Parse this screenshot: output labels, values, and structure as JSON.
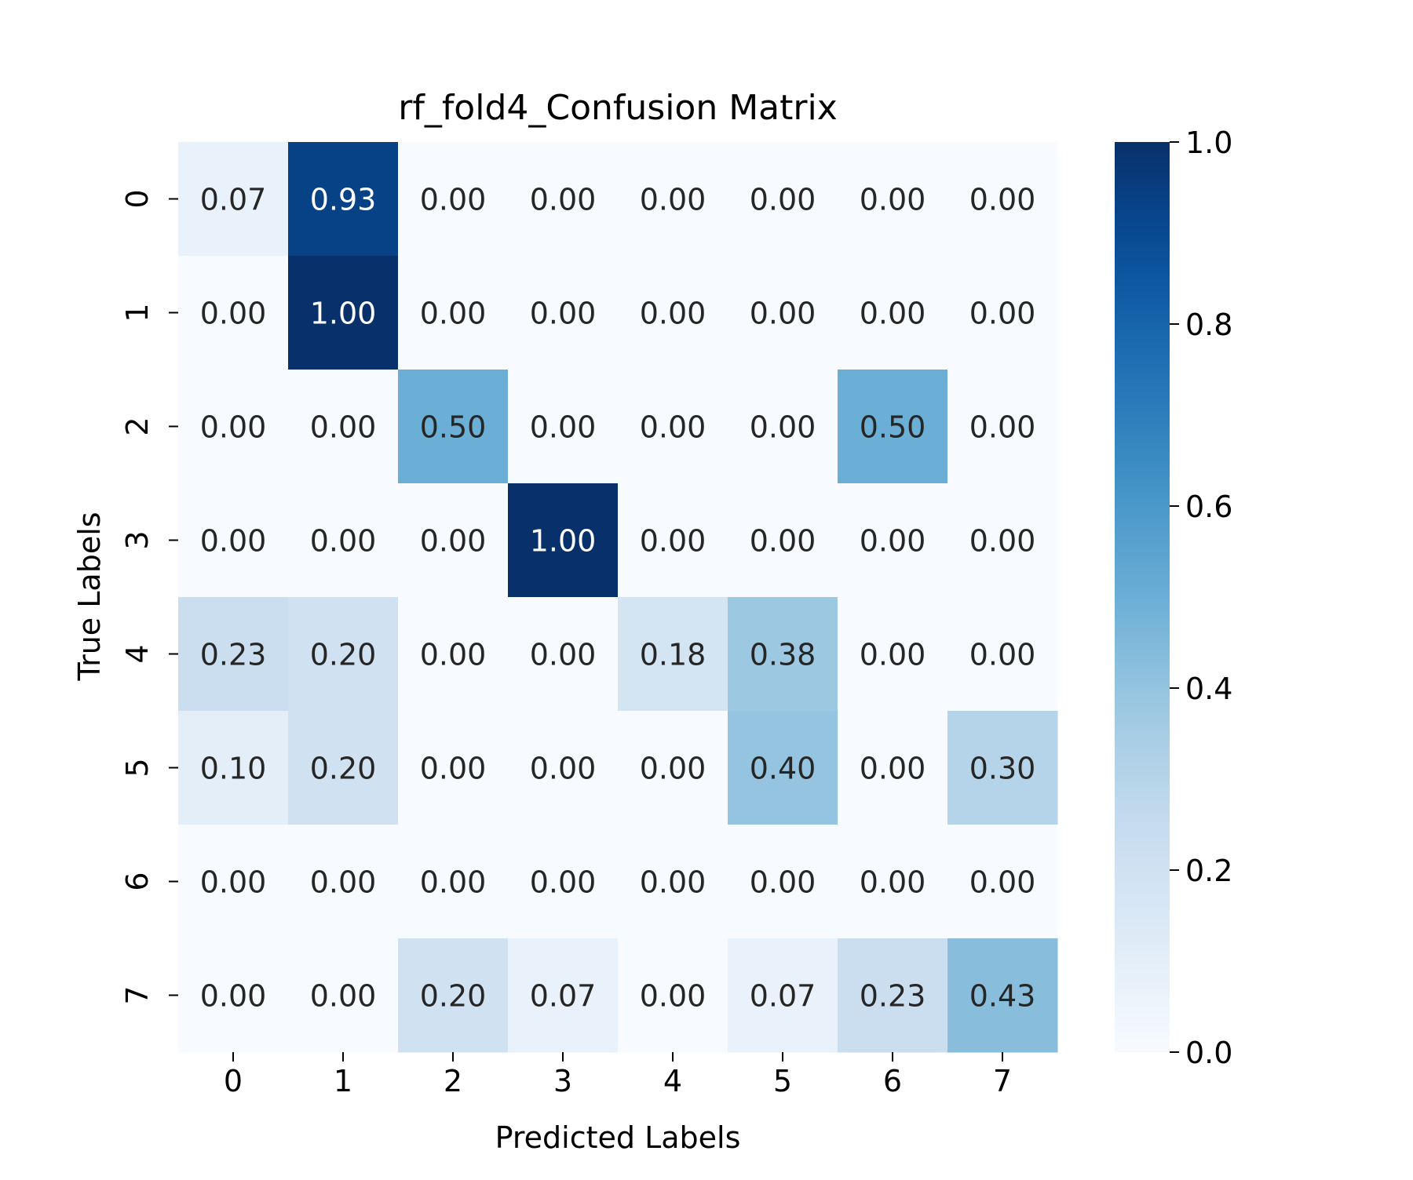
{
  "chart_data": {
    "type": "heatmap",
    "title": "rf_fold4_Confusion Matrix",
    "xlabel": "Predicted Labels",
    "ylabel": "True Labels",
    "x_categories": [
      "0",
      "1",
      "2",
      "3",
      "4",
      "5",
      "6",
      "7"
    ],
    "y_categories": [
      "0",
      "1",
      "2",
      "3",
      "4",
      "5",
      "6",
      "7"
    ],
    "values": [
      [
        0.07,
        0.93,
        0.0,
        0.0,
        0.0,
        0.0,
        0.0,
        0.0
      ],
      [
        0.0,
        1.0,
        0.0,
        0.0,
        0.0,
        0.0,
        0.0,
        0.0
      ],
      [
        0.0,
        0.0,
        0.5,
        0.0,
        0.0,
        0.0,
        0.5,
        0.0
      ],
      [
        0.0,
        0.0,
        0.0,
        1.0,
        0.0,
        0.0,
        0.0,
        0.0
      ],
      [
        0.23,
        0.2,
        0.0,
        0.0,
        0.18,
        0.38,
        0.0,
        0.0
      ],
      [
        0.1,
        0.2,
        0.0,
        0.0,
        0.0,
        0.4,
        0.0,
        0.3
      ],
      [
        0.0,
        0.0,
        0.0,
        0.0,
        0.0,
        0.0,
        0.0,
        0.0
      ],
      [
        0.0,
        0.0,
        0.2,
        0.07,
        0.0,
        0.07,
        0.23,
        0.43
      ]
    ],
    "annotation_format": "0.00",
    "colormap": "Blues",
    "colorbar": {
      "range": [
        0.0,
        1.0
      ],
      "ticks": [
        "0.0",
        "0.2",
        "0.4",
        "0.6",
        "0.8",
        "1.0"
      ]
    },
    "grid": false
  }
}
